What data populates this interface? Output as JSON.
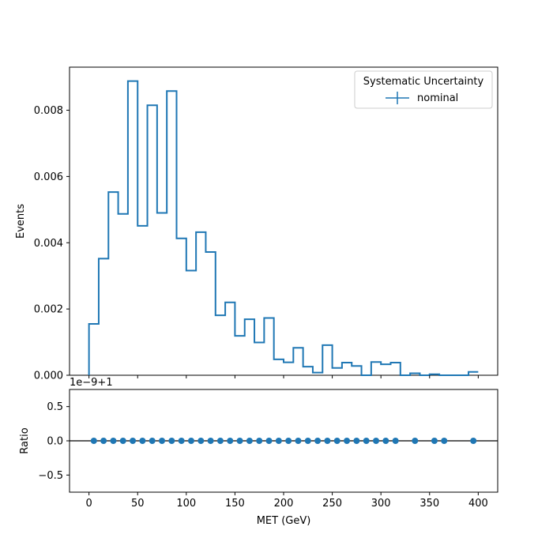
{
  "colors": {
    "series": "#1f77b4",
    "axes": "#000000",
    "background": "#ffffff",
    "legend_border": "#cccccc"
  },
  "chart_data": [
    {
      "type": "step-histogram",
      "panel": "main",
      "xlabel": "",
      "ylabel": "Events",
      "xlim": [
        -20,
        420
      ],
      "ylim": [
        0,
        0.0093
      ],
      "yticks": [
        0.0,
        0.002,
        0.004,
        0.006,
        0.008
      ],
      "ytick_labels": [
        "0.000",
        "0.002",
        "0.004",
        "0.006",
        "0.008"
      ],
      "xticks": [
        0,
        50,
        100,
        150,
        200,
        250,
        300,
        350,
        400
      ],
      "xtick_labels": [
        "",
        "",
        "",
        "",
        "",
        "",
        "",
        "",
        ""
      ],
      "bin_edges": [
        0,
        10,
        20,
        30,
        40,
        50,
        60,
        70,
        80,
        90,
        100,
        110,
        120,
        130,
        140,
        150,
        160,
        170,
        180,
        190,
        200,
        210,
        220,
        230,
        240,
        250,
        260,
        270,
        280,
        290,
        300,
        310,
        320,
        330,
        340,
        350,
        360,
        370,
        380,
        390,
        400
      ],
      "series": [
        {
          "name": "nominal",
          "values": [
            0.00155,
            0.00352,
            0.00553,
            0.00487,
            0.00888,
            0.00451,
            0.00815,
            0.0049,
            0.00858,
            0.00413,
            0.00316,
            0.00432,
            0.00372,
            0.00181,
            0.0022,
            0.00119,
            0.00169,
            0.00099,
            0.00173,
            0.00048,
            0.00039,
            0.00083,
            0.00026,
            8e-05,
            0.00091,
            0.00022,
            0.00038,
            0.00028,
            0.0,
            0.0004,
            0.00033,
            0.00038,
            0.0,
            6e-05,
            0.0,
            3e-05,
            0.0,
            0.0,
            0.0,
            0.0001
          ]
        }
      ],
      "legend": {
        "title": "Systematic Uncertainty",
        "entries": [
          "nominal"
        ],
        "placement": "top-right"
      }
    },
    {
      "type": "scatter",
      "panel": "ratio",
      "xlabel": "MET (GeV)",
      "ylabel": "Ratio",
      "offset_text": "1e−9+1",
      "xlim": [
        -20,
        420
      ],
      "ylim": [
        -0.75,
        0.75
      ],
      "yticks": [
        -0.5,
        0.0,
        0.5
      ],
      "ytick_labels": [
        "−0.5",
        "0.0",
        "0.5"
      ],
      "xticks": [
        0,
        50,
        100,
        150,
        200,
        250,
        300,
        350,
        400
      ],
      "xtick_labels": [
        "0",
        "50",
        "100",
        "150",
        "200",
        "250",
        "300",
        "350",
        "400"
      ],
      "reference_line": 0.0,
      "x": [
        5,
        15,
        25,
        35,
        45,
        55,
        65,
        75,
        85,
        95,
        105,
        115,
        125,
        135,
        145,
        155,
        165,
        175,
        185,
        195,
        205,
        215,
        225,
        235,
        245,
        255,
        265,
        275,
        285,
        295,
        305,
        315,
        335,
        355,
        365,
        395
      ],
      "y": [
        0,
        0,
        0,
        0,
        0,
        0,
        0,
        0,
        0,
        0,
        0,
        0,
        0,
        0,
        0,
        0,
        0,
        0,
        0,
        0,
        0,
        0,
        0,
        0,
        0,
        0,
        0,
        0,
        0,
        0,
        0,
        0,
        0,
        0,
        0,
        0
      ]
    }
  ]
}
